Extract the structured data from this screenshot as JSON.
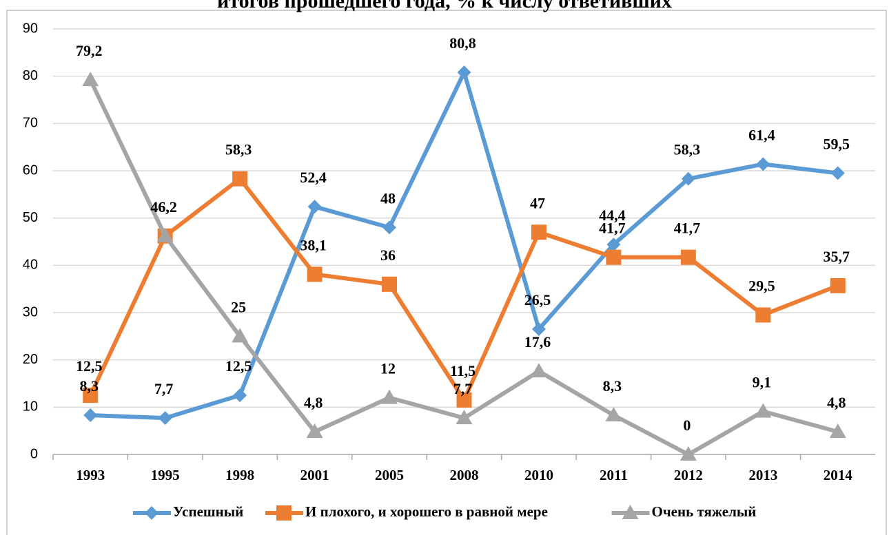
{
  "chart_data": {
    "type": "line",
    "title": "итогов прошедшего года, % к числу ответивших",
    "categories": [
      "1993",
      "1995",
      "1998",
      "2001",
      "2005",
      "2008",
      "2010",
      "2011",
      "2012",
      "2013",
      "2014"
    ],
    "series": [
      {
        "name": "Успешный",
        "color": "#5b9bd5",
        "marker": "diamond",
        "values": [
          8.3,
          7.7,
          12.5,
          52.4,
          48,
          80.8,
          26.5,
          44.4,
          58.3,
          61.4,
          59.5
        ],
        "value_labels": [
          "8,3",
          "7,7",
          "12,5",
          "52,4",
          "48",
          "80,8",
          "26,5",
          "44,4",
          "58,3",
          "61,4",
          "59,5"
        ]
      },
      {
        "name": "И плохого, и хорошего в равной мере",
        "color": "#ed7d31",
        "marker": "square",
        "values": [
          12.5,
          46.2,
          58.3,
          38.1,
          36,
          11.5,
          47,
          41.7,
          41.7,
          29.5,
          35.7
        ],
        "value_labels": [
          "12,5",
          "46,2",
          "58,3",
          "38,1",
          "36",
          "11,5",
          "47",
          "41,7",
          "41,7",
          "29,5",
          "35,7"
        ]
      },
      {
        "name": "Очень тяжелый",
        "color": "#a5a5a5",
        "marker": "triangle",
        "values": [
          79.2,
          46.2,
          25,
          4.8,
          12,
          7.7,
          17.6,
          8.3,
          0,
          9.1,
          4.8
        ],
        "value_labels": [
          "79,2",
          "46,2",
          "25",
          "4,8",
          "12",
          "7,7",
          "17,6",
          "8,3",
          "0",
          "9,1",
          "4,8"
        ]
      }
    ],
    "ylim": [
      0,
      90
    ],
    "yticks": [
      0,
      10,
      20,
      30,
      40,
      50,
      60,
      70,
      80,
      90
    ],
    "grid": true,
    "legend": "bottom"
  }
}
